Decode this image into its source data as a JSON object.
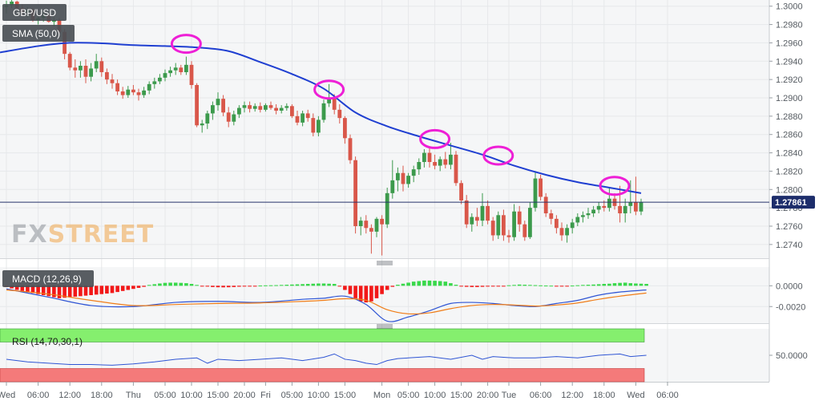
{
  "colors": {
    "bull": "#3c9a4c",
    "bear": "#d9574a",
    "sma": "#1f3fd1",
    "circle": "#ee1fd6",
    "macd_line": "#2f55d4",
    "signal_line": "#f07d18",
    "hist_pos": "#38d84a",
    "hist_neg": "#f21818",
    "rsi_line": "#2f55d4",
    "rsi_overbought": "#85ef6e",
    "rsi_oversold": "#f47a7a",
    "price_line": "#28346b",
    "price_badge": "#1d2d6b"
  },
  "header": {
    "symbol": "GBP/USD",
    "sma_label": "SMA (50,0)",
    "macd_label": "MACD (12,26,9)",
    "rsi_label": "RSI (14,70,30,1)",
    "current_price": "1.27861"
  },
  "watermark": {
    "left": "FX",
    "right": "STREET"
  },
  "chart_data": [
    {
      "type": "candlestick",
      "title": "GBP/USD",
      "y_ticks": [
        "1.3000",
        "1.2980",
        "1.2960",
        "1.2940",
        "1.2920",
        "1.2900",
        "1.2880",
        "1.2860",
        "1.2840",
        "1.2820",
        "1.2800",
        "1.2780",
        "1.2760",
        "1.2740"
      ],
      "ylim": [
        1.2725,
        1.3005
      ],
      "x_ticks": [
        "Wed",
        "06:00",
        "12:00",
        "18:00",
        "Thu",
        "05:00",
        "10:00",
        "15:00",
        "20:00",
        "Fri",
        "05:00",
        "10:00",
        "15:00",
        "Mon",
        "05:00",
        "10:00",
        "15:00",
        "20:00",
        "Tue",
        "06:00",
        "12:00",
        "18:00",
        "Wed",
        "06:00"
      ],
      "x_tick_index": [
        0,
        6,
        12,
        18,
        24,
        30,
        35,
        40,
        45,
        49,
        54,
        59,
        64,
        71,
        76,
        81,
        86,
        91,
        95,
        101,
        107,
        113,
        119,
        125
      ],
      "current_price": 1.27861,
      "candles": [
        [
          1.2999,
          1.3006,
          1.2992,
          1.3001
        ],
        [
          1.3001,
          1.3008,
          1.2998,
          1.3005
        ],
        [
          1.3005,
          1.3006,
          1.2996,
          1.2998
        ],
        [
          1.2998,
          1.3002,
          1.299,
          1.2993
        ],
        [
          1.2993,
          1.2999,
          1.2988,
          1.2996
        ],
        [
          1.2996,
          1.2998,
          1.2983,
          1.2985
        ],
        [
          1.2985,
          1.299,
          1.298,
          1.2987
        ],
        [
          1.2987,
          1.2993,
          1.2983,
          1.299
        ],
        [
          1.299,
          1.2992,
          1.2982,
          1.2983
        ],
        [
          1.2983,
          1.2988,
          1.2978,
          1.2985
        ],
        [
          1.2985,
          1.2987,
          1.297,
          1.2972
        ],
        [
          1.2972,
          1.2975,
          1.2942,
          1.2948
        ],
        [
          1.2948,
          1.295,
          1.293,
          1.2933
        ],
        [
          1.2933,
          1.2942,
          1.2922,
          1.293
        ],
        [
          1.293,
          1.294,
          1.2922,
          1.2935
        ],
        [
          1.2935,
          1.2942,
          1.2916,
          1.2923
        ],
        [
          1.2923,
          1.2938,
          1.2918,
          1.2932
        ],
        [
          1.2932,
          1.2948,
          1.2928,
          1.294
        ],
        [
          1.294,
          1.2944,
          1.2923,
          1.2928
        ],
        [
          1.2928,
          1.2932,
          1.2915,
          1.292
        ],
        [
          1.292,
          1.2926,
          1.291,
          1.2916
        ],
        [
          1.2916,
          1.292,
          1.2903,
          1.2907
        ],
        [
          1.2907,
          1.2912,
          1.2899,
          1.2903
        ],
        [
          1.2903,
          1.2913,
          1.29,
          1.2909
        ],
        [
          1.2909,
          1.2914,
          1.2903,
          1.2906
        ],
        [
          1.2906,
          1.291,
          1.2897,
          1.2903
        ],
        [
          1.2903,
          1.2912,
          1.29,
          1.2908
        ],
        [
          1.2908,
          1.2918,
          1.2904,
          1.2915
        ],
        [
          1.2915,
          1.2922,
          1.291,
          1.2918
        ],
        [
          1.2918,
          1.2926,
          1.2915,
          1.2922
        ],
        [
          1.2922,
          1.2931,
          1.2918,
          1.2927
        ],
        [
          1.2927,
          1.2934,
          1.2923,
          1.293
        ],
        [
          1.293,
          1.2938,
          1.2925,
          1.2933
        ],
        [
          1.2933,
          1.2936,
          1.2925,
          1.2928
        ],
        [
          1.2928,
          1.2945,
          1.2925,
          1.2936
        ],
        [
          1.2936,
          1.294,
          1.291,
          1.2914
        ],
        [
          1.2914,
          1.2916,
          1.2868,
          1.287
        ],
        [
          1.287,
          1.2876,
          1.2862,
          1.2872
        ],
        [
          1.2872,
          1.2886,
          1.2866,
          1.2883
        ],
        [
          1.2883,
          1.2896,
          1.2876,
          1.2892
        ],
        [
          1.2892,
          1.2906,
          1.2886,
          1.2899
        ],
        [
          1.2899,
          1.2903,
          1.288,
          1.2884
        ],
        [
          1.2884,
          1.289,
          1.2868,
          1.2874
        ],
        [
          1.2874,
          1.2886,
          1.287,
          1.2882
        ],
        [
          1.2882,
          1.2892,
          1.2878,
          1.2889
        ],
        [
          1.2889,
          1.2896,
          1.2884,
          1.2892
        ],
        [
          1.2892,
          1.2896,
          1.2884,
          1.2888
        ],
        [
          1.2888,
          1.2894,
          1.2885,
          1.2891
        ],
        [
          1.2891,
          1.2895,
          1.2884,
          1.2887
        ],
        [
          1.2887,
          1.2894,
          1.2885,
          1.2892
        ],
        [
          1.2892,
          1.2896,
          1.2887,
          1.2889
        ],
        [
          1.2889,
          1.2893,
          1.2882,
          1.2886
        ],
        [
          1.2886,
          1.2892,
          1.2883,
          1.2889
        ],
        [
          1.2889,
          1.2894,
          1.2886,
          1.2891
        ],
        [
          1.2891,
          1.2893,
          1.2878,
          1.288
        ],
        [
          1.288,
          1.2886,
          1.287,
          1.2873
        ],
        [
          1.2873,
          1.2886,
          1.2869,
          1.2883
        ],
        [
          1.2883,
          1.2887,
          1.2874,
          1.2878
        ],
        [
          1.2878,
          1.2883,
          1.2858,
          1.2862
        ],
        [
          1.2862,
          1.288,
          1.2858,
          1.2876
        ],
        [
          1.2876,
          1.2898,
          1.2873,
          1.2894
        ],
        [
          1.2894,
          1.2915,
          1.289,
          1.29
        ],
        [
          1.29,
          1.2904,
          1.2882,
          1.2887
        ],
        [
          1.2887,
          1.2893,
          1.2872,
          1.2878
        ],
        [
          1.2878,
          1.288,
          1.285,
          1.2856
        ],
        [
          1.2856,
          1.286,
          1.2828,
          1.2832
        ],
        [
          1.2832,
          1.2836,
          1.2752,
          1.276
        ],
        [
          1.276,
          1.277,
          1.275,
          1.2766
        ],
        [
          1.2766,
          1.2772,
          1.2752,
          1.2758
        ],
        [
          1.2758,
          1.2762,
          1.273,
          1.2754
        ],
        [
          1.2754,
          1.277,
          1.2748,
          1.2768
        ],
        [
          1.2768,
          1.2772,
          1.2728,
          1.2762
        ],
        [
          1.2762,
          1.2802,
          1.2758,
          1.2796
        ],
        [
          1.2796,
          1.2832,
          1.279,
          1.281
        ],
        [
          1.281,
          1.2824,
          1.2798,
          1.2818
        ],
        [
          1.2818,
          1.2826,
          1.2798,
          1.2806
        ],
        [
          1.2806,
          1.2818,
          1.2802,
          1.2815
        ],
        [
          1.2815,
          1.2826,
          1.2808,
          1.2822
        ],
        [
          1.2822,
          1.2834,
          1.2816,
          1.283
        ],
        [
          1.283,
          1.2844,
          1.2824,
          1.284
        ],
        [
          1.284,
          1.2845,
          1.2824,
          1.283
        ],
        [
          1.283,
          1.2838,
          1.2822,
          1.2826
        ],
        [
          1.2826,
          1.2836,
          1.282,
          1.2833
        ],
        [
          1.2833,
          1.2841,
          1.2823,
          1.2827
        ],
        [
          1.2827,
          1.2851,
          1.2822,
          1.2838
        ],
        [
          1.2838,
          1.2842,
          1.2804,
          1.2807
        ],
        [
          1.2807,
          1.281,
          1.2784,
          1.2788
        ],
        [
          1.2788,
          1.2794,
          1.2758,
          1.2762
        ],
        [
          1.2762,
          1.2774,
          1.2754,
          1.277
        ],
        [
          1.277,
          1.278,
          1.276,
          1.2766
        ],
        [
          1.2766,
          1.2796,
          1.276,
          1.2782
        ],
        [
          1.2782,
          1.2788,
          1.2762,
          1.2766
        ],
        [
          1.2766,
          1.277,
          1.2744,
          1.275
        ],
        [
          1.275,
          1.2776,
          1.2746,
          1.2772
        ],
        [
          1.2772,
          1.2778,
          1.2744,
          1.275
        ],
        [
          1.275,
          1.2756,
          1.2742,
          1.2748
        ],
        [
          1.2748,
          1.2784,
          1.2744,
          1.2776
        ],
        [
          1.2776,
          1.2782,
          1.2754,
          1.2762
        ],
        [
          1.2762,
          1.2766,
          1.2744,
          1.2748
        ],
        [
          1.2748,
          1.2786,
          1.2746,
          1.278
        ],
        [
          1.278,
          1.282,
          1.2776,
          1.2812
        ],
        [
          1.2812,
          1.2816,
          1.2788,
          1.2792
        ],
        [
          1.2792,
          1.2796,
          1.277,
          1.2774
        ],
        [
          1.2774,
          1.2778,
          1.2762,
          1.2768
        ],
        [
          1.2768,
          1.2772,
          1.2752,
          1.2758
        ],
        [
          1.2758,
          1.2764,
          1.2744,
          1.275
        ],
        [
          1.275,
          1.2762,
          1.2742,
          1.2758
        ],
        [
          1.2758,
          1.2768,
          1.2752,
          1.2764
        ],
        [
          1.2764,
          1.2774,
          1.276,
          1.277
        ],
        [
          1.277,
          1.2776,
          1.2764,
          1.2772
        ],
        [
          1.2772,
          1.278,
          1.2768,
          1.2774
        ],
        [
          1.2774,
          1.2782,
          1.277,
          1.2778
        ],
        [
          1.2778,
          1.2786,
          1.2774,
          1.2782
        ],
        [
          1.2782,
          1.2788,
          1.2776,
          1.278
        ],
        [
          1.278,
          1.2802,
          1.2776,
          1.279
        ],
        [
          1.279,
          1.2796,
          1.2778,
          1.2782
        ],
        [
          1.2782,
          1.2804,
          1.2764,
          1.2774
        ],
        [
          1.2774,
          1.279,
          1.2764,
          1.2782
        ],
        [
          1.2782,
          1.281,
          1.2774,
          1.2786
        ],
        [
          1.2786,
          1.2814,
          1.2772,
          1.2776
        ],
        [
          1.2776,
          1.279,
          1.2772,
          1.27861
        ]
      ],
      "sma": {
        "name": "SMA (50,0)",
        "x": [
          0,
          6,
          12,
          18,
          24,
          30,
          36,
          42,
          48,
          54,
          60,
          66,
          72,
          78,
          84,
          90,
          96,
          102,
          108,
          114,
          120
        ],
        "y": [
          1.29495,
          1.29565,
          1.296,
          1.29595,
          1.29575,
          1.29565,
          1.2955,
          1.2951,
          1.2939,
          1.2926,
          1.291,
          1.2884,
          1.2869,
          1.2858,
          1.2848,
          1.2838,
          1.2826,
          1.2816,
          1.2808,
          1.2802,
          1.2796
        ]
      },
      "highlight_circles": [
        {
          "x": 34,
          "y": 1.2959
        },
        {
          "x": 61,
          "y": 1.2909
        },
        {
          "x": 81,
          "y": 1.2855
        },
        {
          "x": 93,
          "y": 1.2837
        },
        {
          "x": 115,
          "y": 1.2804
        }
      ]
    },
    {
      "type": "bar",
      "title": "MACD (12,26,9)",
      "y_ticks": [
        "0.0000",
        "-0.0020"
      ],
      "ylim": [
        -0.0036,
        0.0018
      ],
      "histogram": [
        -0.0001,
        -0.00025,
        -0.0004,
        -0.0005,
        -0.0006,
        -0.0007,
        -0.0008,
        -0.0009,
        -0.001,
        -0.0011,
        -0.0012,
        -0.00115,
        -0.0011,
        -0.00105,
        -0.001,
        -0.00095,
        -0.0009,
        -0.00085,
        -0.0008,
        -0.00075,
        -0.0007,
        -0.0006,
        -0.0005,
        -0.0004,
        -0.0003,
        -0.0002,
        -0.0001,
        8e-05,
        0.00015,
        0.00022,
        0.00028,
        0.0003,
        0.0003,
        0.00028,
        0.00025,
        0.00018,
        8e-05,
        -5e-05,
        -8e-05,
        -0.00012,
        -0.00014,
        -0.00015,
        -0.00014,
        -0.00012,
        -9e-05,
        -6e-05,
        -4e-05,
        -2e-05,
        2e-05,
        4e-05,
        5e-05,
        6e-05,
        8e-05,
        0.0001,
        0.00012,
        0.00014,
        0.00016,
        0.00018,
        0.0002,
        0.00022,
        0.00022,
        0.0002,
        0.00018,
        -5e-05,
        -0.0004,
        -0.0008,
        -0.0012,
        -0.0015,
        -0.0016,
        -0.0015,
        -0.0012,
        -0.0008,
        -0.0004,
        -0.0001,
        0.0001,
        0.0002,
        0.0003,
        0.0004,
        0.00045,
        0.0005,
        0.0005,
        0.00048,
        0.00045,
        0.0004,
        0.00025,
        0.0001,
        -5e-05,
        -0.0001,
        -0.00012,
        -0.00012,
        -0.0001,
        -8e-05,
        -6e-05,
        -4e-05,
        -2e-05,
        5e-05,
        8e-05,
        0.00012,
        0.0001,
        8e-05,
        6e-05,
        4e-05,
        2e-05,
        1e-05,
        -2e-05,
        -3e-05,
        -2e-05,
        2e-05,
        5e-05,
        8e-05,
        0.0001,
        0.00012,
        0.00015,
        0.00018,
        0.0002,
        0.00025,
        0.00028,
        0.0003,
        0.00025,
        0.00022,
        0.0002,
        0.00018
      ],
      "macd": {
        "name": "MACD",
        "x": [
          0,
          8,
          16,
          24,
          32,
          40,
          48,
          56,
          60,
          64,
          68,
          72,
          76,
          80,
          84,
          88,
          92,
          96,
          100,
          104,
          108,
          112,
          116,
          121
        ],
        "y": [
          -0.0003,
          -0.0011,
          -0.0019,
          -0.002,
          -0.0016,
          -0.0015,
          -0.0016,
          -0.0013,
          -0.0012,
          -0.001,
          -0.0018,
          -0.0034,
          -0.003,
          -0.0024,
          -0.0017,
          -0.0016,
          -0.0017,
          -0.0019,
          -0.002,
          -0.0017,
          -0.0014,
          -0.0009,
          -0.0006,
          -0.0004
        ]
      },
      "signal": {
        "name": "Signal",
        "x": [
          0,
          8,
          16,
          24,
          32,
          40,
          48,
          56,
          60,
          64,
          68,
          72,
          76,
          80,
          84,
          88,
          92,
          96,
          100,
          104,
          108,
          112,
          116,
          121
        ],
        "y": [
          -0.0004,
          -0.0008,
          -0.0014,
          -0.0019,
          -0.0018,
          -0.0017,
          -0.00165,
          -0.0015,
          -0.0014,
          -0.00125,
          -0.0014,
          -0.0023,
          -0.0027,
          -0.0026,
          -0.0022,
          -0.0019,
          -0.0018,
          -0.00185,
          -0.00195,
          -0.00185,
          -0.00165,
          -0.0013,
          -0.001,
          -0.0007
        ]
      }
    },
    {
      "type": "line",
      "title": "RSI (14,70,30,1)",
      "y_ticks": [
        "50.0000"
      ],
      "ylim": [
        10,
        90
      ],
      "overbought": 70,
      "oversold": 30,
      "rsi": {
        "name": "RSI",
        "x": [
          0,
          4,
          8,
          12,
          16,
          20,
          24,
          28,
          32,
          36,
          38,
          40,
          44,
          48,
          52,
          56,
          60,
          62,
          64,
          66,
          68,
          70,
          72,
          74,
          76,
          80,
          84,
          88,
          90,
          92,
          96,
          100,
          104,
          108,
          112,
          116,
          118,
          121
        ],
        "y": [
          44,
          40,
          38,
          36,
          36,
          35,
          37,
          40,
          44,
          46,
          38,
          44,
          42,
          44,
          46,
          42,
          47,
          52,
          44,
          42,
          38,
          36,
          42,
          45,
          46,
          48,
          44,
          50,
          44,
          48,
          46,
          46,
          48,
          46,
          50,
          52,
          48,
          50
        ]
      }
    }
  ]
}
